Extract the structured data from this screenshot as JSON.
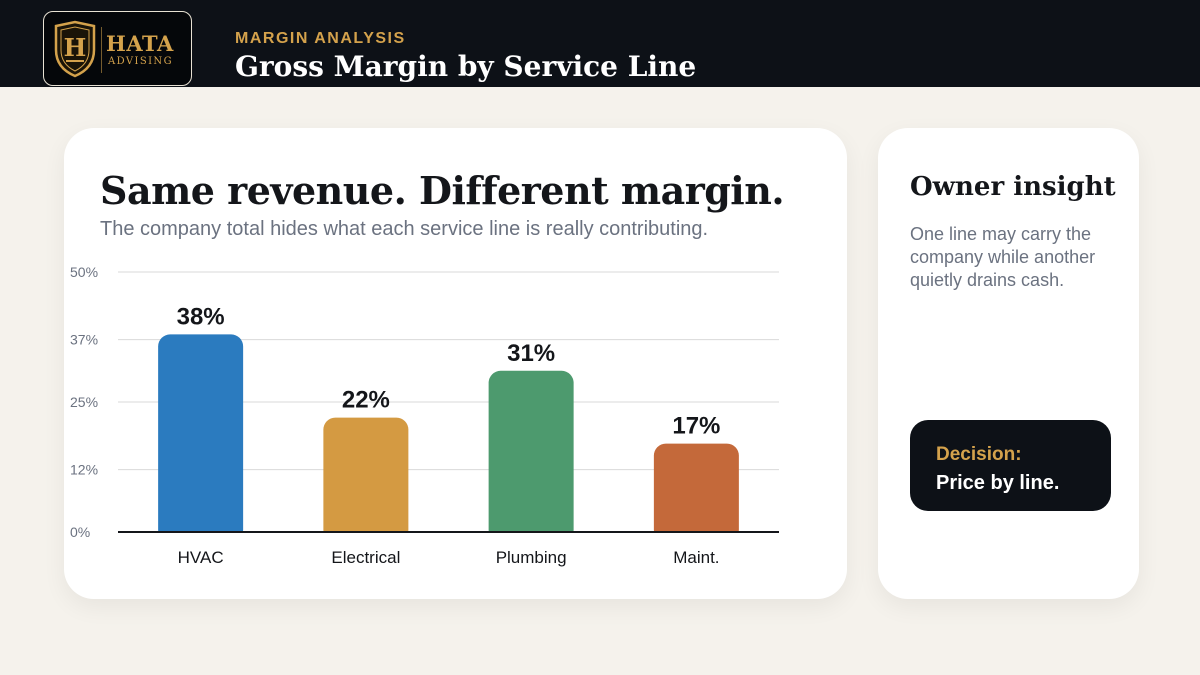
{
  "brand": {
    "name": "HATA",
    "tagline": "ADVISING",
    "monogram": "H"
  },
  "header": {
    "eyebrow": "MARGIN ANALYSIS",
    "title": "Gross Margin by Service Line"
  },
  "card": {
    "headline": "Same revenue. Different margin.",
    "subhead": "The company total hides what each service line is really contributing."
  },
  "sidebar": {
    "title": "Owner insight",
    "body": "One line may carry the company while another quietly drains cash.",
    "decision_label": "Decision:",
    "decision_text": "Price by line."
  },
  "colors": {
    "accent": "#d4a24c",
    "dark": "#0d1117",
    "background": "#f5f2ec"
  },
  "chart_data": {
    "type": "bar",
    "categories": [
      "HVAC",
      "Electrical",
      "Plumbing",
      "Maint."
    ],
    "values": [
      38,
      22,
      31,
      17
    ],
    "data_labels": [
      "38%",
      "22%",
      "31%",
      "17%"
    ],
    "colors": [
      "#2b7bbf",
      "#d49a42",
      "#4d9a6e",
      "#c4693a"
    ],
    "ylim": [
      0,
      50
    ],
    "yticks": [
      0,
      12,
      25,
      37,
      50
    ],
    "ytick_labels": [
      "0%",
      "12%",
      "25%",
      "37%",
      "50%"
    ],
    "grid": true,
    "xlabel": "",
    "ylabel": ""
  }
}
